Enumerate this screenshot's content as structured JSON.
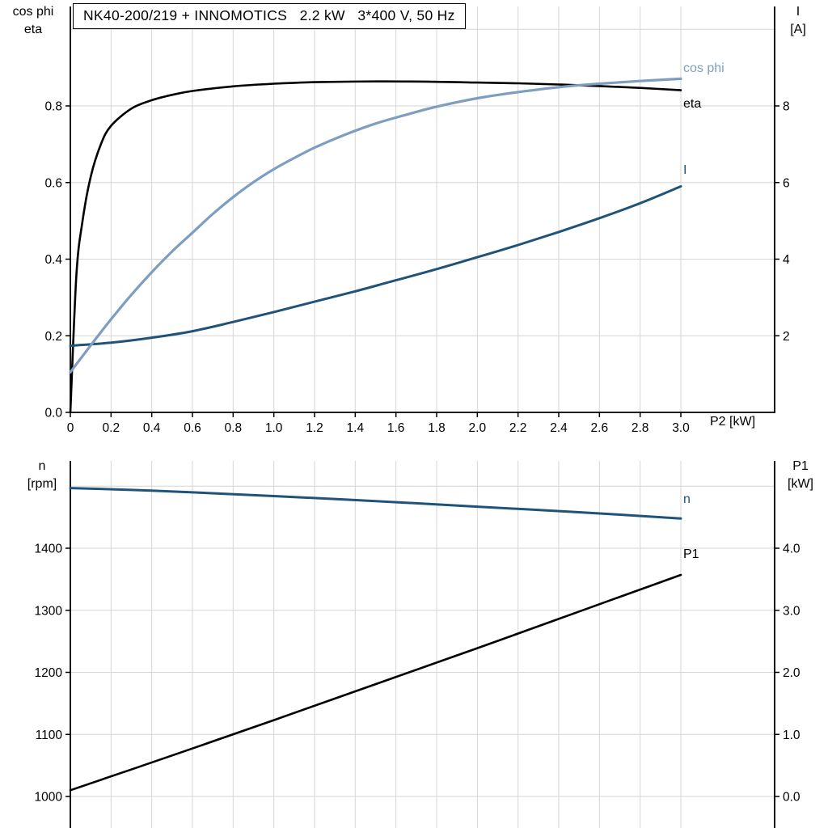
{
  "colors": {
    "black": "#000000",
    "light_blue": "#7d9ec0",
    "dark_blue": "#1f5379",
    "grid": "#d6d6d6",
    "background": "#ffffff"
  },
  "chart_data": [
    {
      "type": "line",
      "title": "NK40-200/219 + INNOMOTICS   2.2 kW   3*400 V, 50 Hz",
      "xlabel": "P2 [kW]",
      "xlim": [
        0,
        3.0
      ],
      "grid": true,
      "x_tick_labels": [
        "0",
        "0.2",
        "0.4",
        "0.6",
        "0.8",
        "1.0",
        "1.2",
        "1.4",
        "1.6",
        "1.8",
        "2.0",
        "2.2",
        "2.4",
        "2.6",
        "2.8",
        "3.0"
      ],
      "y_left": {
        "label_lines": [
          "cos phi",
          "eta"
        ],
        "tick_labels": [
          "0.0",
          "0.2",
          "0.4",
          "0.6",
          "0.8"
        ],
        "lim": [
          0,
          1.06
        ]
      },
      "y_right": {
        "label_lines": [
          "I",
          "[A]"
        ],
        "tick_labels": [
          "2",
          "4",
          "6",
          "8"
        ],
        "lim": [
          0,
          10.6
        ]
      },
      "series": [
        {
          "name": "eta",
          "axis": "left",
          "unit": "",
          "color": "#000000",
          "points": [
            [
              0,
              0
            ],
            [
              0.03,
              0.36
            ],
            [
              0.06,
              0.5
            ],
            [
              0.1,
              0.615
            ],
            [
              0.15,
              0.7
            ],
            [
              0.2,
              0.748
            ],
            [
              0.3,
              0.793
            ],
            [
              0.4,
              0.815
            ],
            [
              0.5,
              0.829
            ],
            [
              0.6,
              0.839
            ],
            [
              0.8,
              0.851
            ],
            [
              1.0,
              0.858
            ],
            [
              1.2,
              0.862
            ],
            [
              1.5,
              0.864
            ],
            [
              1.8,
              0.863
            ],
            [
              2.0,
              0.861
            ],
            [
              2.2,
              0.859
            ],
            [
              2.4,
              0.856
            ],
            [
              2.6,
              0.852
            ],
            [
              2.8,
              0.847
            ],
            [
              3.0,
              0.841
            ]
          ]
        },
        {
          "name": "I",
          "axis": "right",
          "unit": "A",
          "color": "#1f5379",
          "points": [
            [
              0,
              1.74
            ],
            [
              0.2,
              1.82
            ],
            [
              0.4,
              1.95
            ],
            [
              0.6,
              2.12
            ],
            [
              0.8,
              2.36
            ],
            [
              1.0,
              2.62
            ],
            [
              1.2,
              2.89
            ],
            [
              1.4,
              3.16
            ],
            [
              1.6,
              3.45
            ],
            [
              1.8,
              3.74
            ],
            [
              2.0,
              4.05
            ],
            [
              2.2,
              4.37
            ],
            [
              2.4,
              4.71
            ],
            [
              2.6,
              5.07
            ],
            [
              2.8,
              5.46
            ],
            [
              3.0,
              5.9
            ]
          ]
        },
        {
          "name": "cos phi",
          "axis": "left",
          "unit": "",
          "color": "#7d9ec0",
          "points": [
            [
              0,
              0.105
            ],
            [
              0.1,
              0.175
            ],
            [
              0.2,
              0.243
            ],
            [
              0.3,
              0.307
            ],
            [
              0.4,
              0.366
            ],
            [
              0.5,
              0.42
            ],
            [
              0.6,
              0.469
            ],
            [
              0.7,
              0.518
            ],
            [
              0.8,
              0.562
            ],
            [
              0.9,
              0.601
            ],
            [
              1.0,
              0.635
            ],
            [
              1.1,
              0.664
            ],
            [
              1.2,
              0.691
            ],
            [
              1.35,
              0.725
            ],
            [
              1.5,
              0.754
            ],
            [
              1.65,
              0.777
            ],
            [
              1.8,
              0.798
            ],
            [
              2.0,
              0.82
            ],
            [
              2.2,
              0.836
            ],
            [
              2.4,
              0.849
            ],
            [
              2.6,
              0.858
            ],
            [
              2.8,
              0.865
            ],
            [
              3.0,
              0.871
            ]
          ]
        }
      ]
    },
    {
      "type": "line",
      "title": "",
      "xlabel": "",
      "xlim": [
        0,
        3.0
      ],
      "grid": true,
      "x_grid_values": [
        0.2,
        0.4,
        0.6,
        0.8,
        1.0,
        1.2,
        1.4,
        1.6,
        1.8,
        2.0,
        2.2,
        2.4,
        2.6,
        2.8,
        3.0
      ],
      "y_left": {
        "label_lines": [
          "n",
          "[rpm]"
        ],
        "tick_labels": [
          "1000",
          "1100",
          "1200",
          "1300",
          "1400"
        ],
        "lim": [
          950,
          1540
        ]
      },
      "y_right": {
        "label_lines": [
          "P1",
          "[kW]"
        ],
        "tick_labels": [
          "0.0",
          "1.0",
          "2.0",
          "3.0",
          "4.0"
        ],
        "lim": [
          -0.5,
          5.4
        ]
      },
      "series": [
        {
          "name": "n",
          "axis": "left",
          "unit": "rpm",
          "color": "#1f5379",
          "points": [
            [
              0,
              1497
            ],
            [
              0.3,
              1494
            ],
            [
              0.6,
              1490
            ],
            [
              1.0,
              1484
            ],
            [
              1.5,
              1476
            ],
            [
              2.0,
              1467
            ],
            [
              2.5,
              1458
            ],
            [
              3.0,
              1448
            ]
          ]
        },
        {
          "name": "P1",
          "axis": "right",
          "unit": "kW",
          "color": "#000000",
          "points": [
            [
              0,
              0.1
            ],
            [
              0.5,
              0.66
            ],
            [
              1.0,
              1.23
            ],
            [
              1.5,
              1.81
            ],
            [
              2.0,
              2.39
            ],
            [
              2.5,
              2.98
            ],
            [
              3.0,
              3.57
            ]
          ]
        }
      ]
    }
  ]
}
